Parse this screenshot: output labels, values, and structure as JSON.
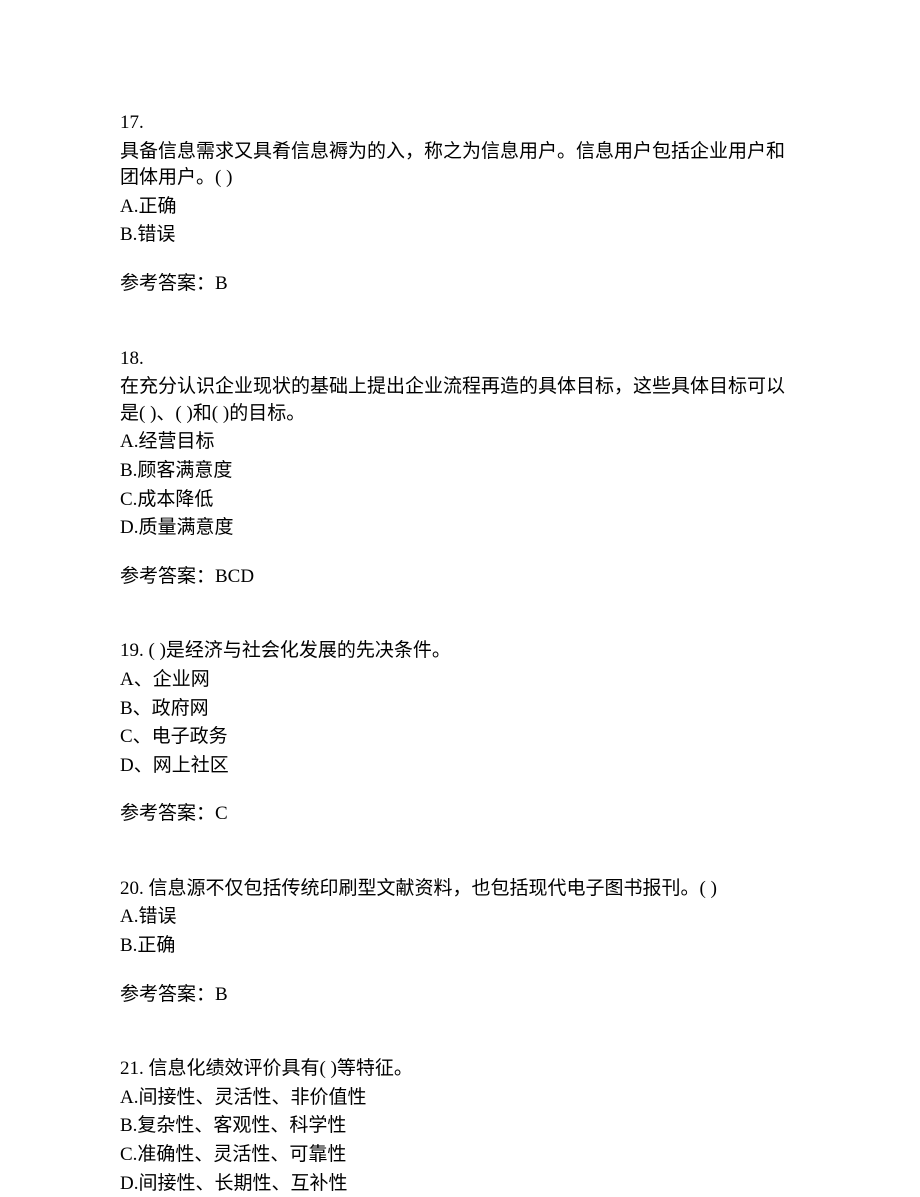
{
  "questions": [
    {
      "number": "17.",
      "text": "具备信息需求又具肴信息褥为的入，称之为信息用户。信息用户包括企业用户和团体用户。(   )",
      "options": [
        "A.正确",
        "B.错误"
      ],
      "answer_label": "参考答案：B"
    },
    {
      "number": "18.",
      "text": "在充分认识企业现状的基础上提出企业流程再造的具体目标，这些具体目标可以是(   )、(   )和(   )的目标。",
      "options": [
        "A.经营目标",
        "B.顾客满意度",
        "C.成本降低",
        "D.质量满意度"
      ],
      "answer_label": "参考答案：BCD"
    },
    {
      "number": "19.  (   )是经济与社会化发展的先决条件。",
      "text": "",
      "options": [
        "A、企业网",
        "B、政府网",
        "C、电子政务",
        "D、网上社区"
      ],
      "answer_label": "参考答案：C"
    },
    {
      "number": "20.  信息源不仅包括传统印刷型文献资料，也包括现代电子图书报刊。(   )",
      "text": "",
      "options": [
        "A.错误",
        "B.正确"
      ],
      "answer_label": "参考答案：B"
    },
    {
      "number": "21.  信息化绩效评价具有(   )等特征。",
      "text": "",
      "options": [
        "A.间接性、灵活性、非价值性",
        "B.复杂性、客观性、科学性",
        "C.准确性、灵活性、可靠性",
        "D.间接性、长期性、互补性"
      ],
      "answer_label": ""
    }
  ]
}
